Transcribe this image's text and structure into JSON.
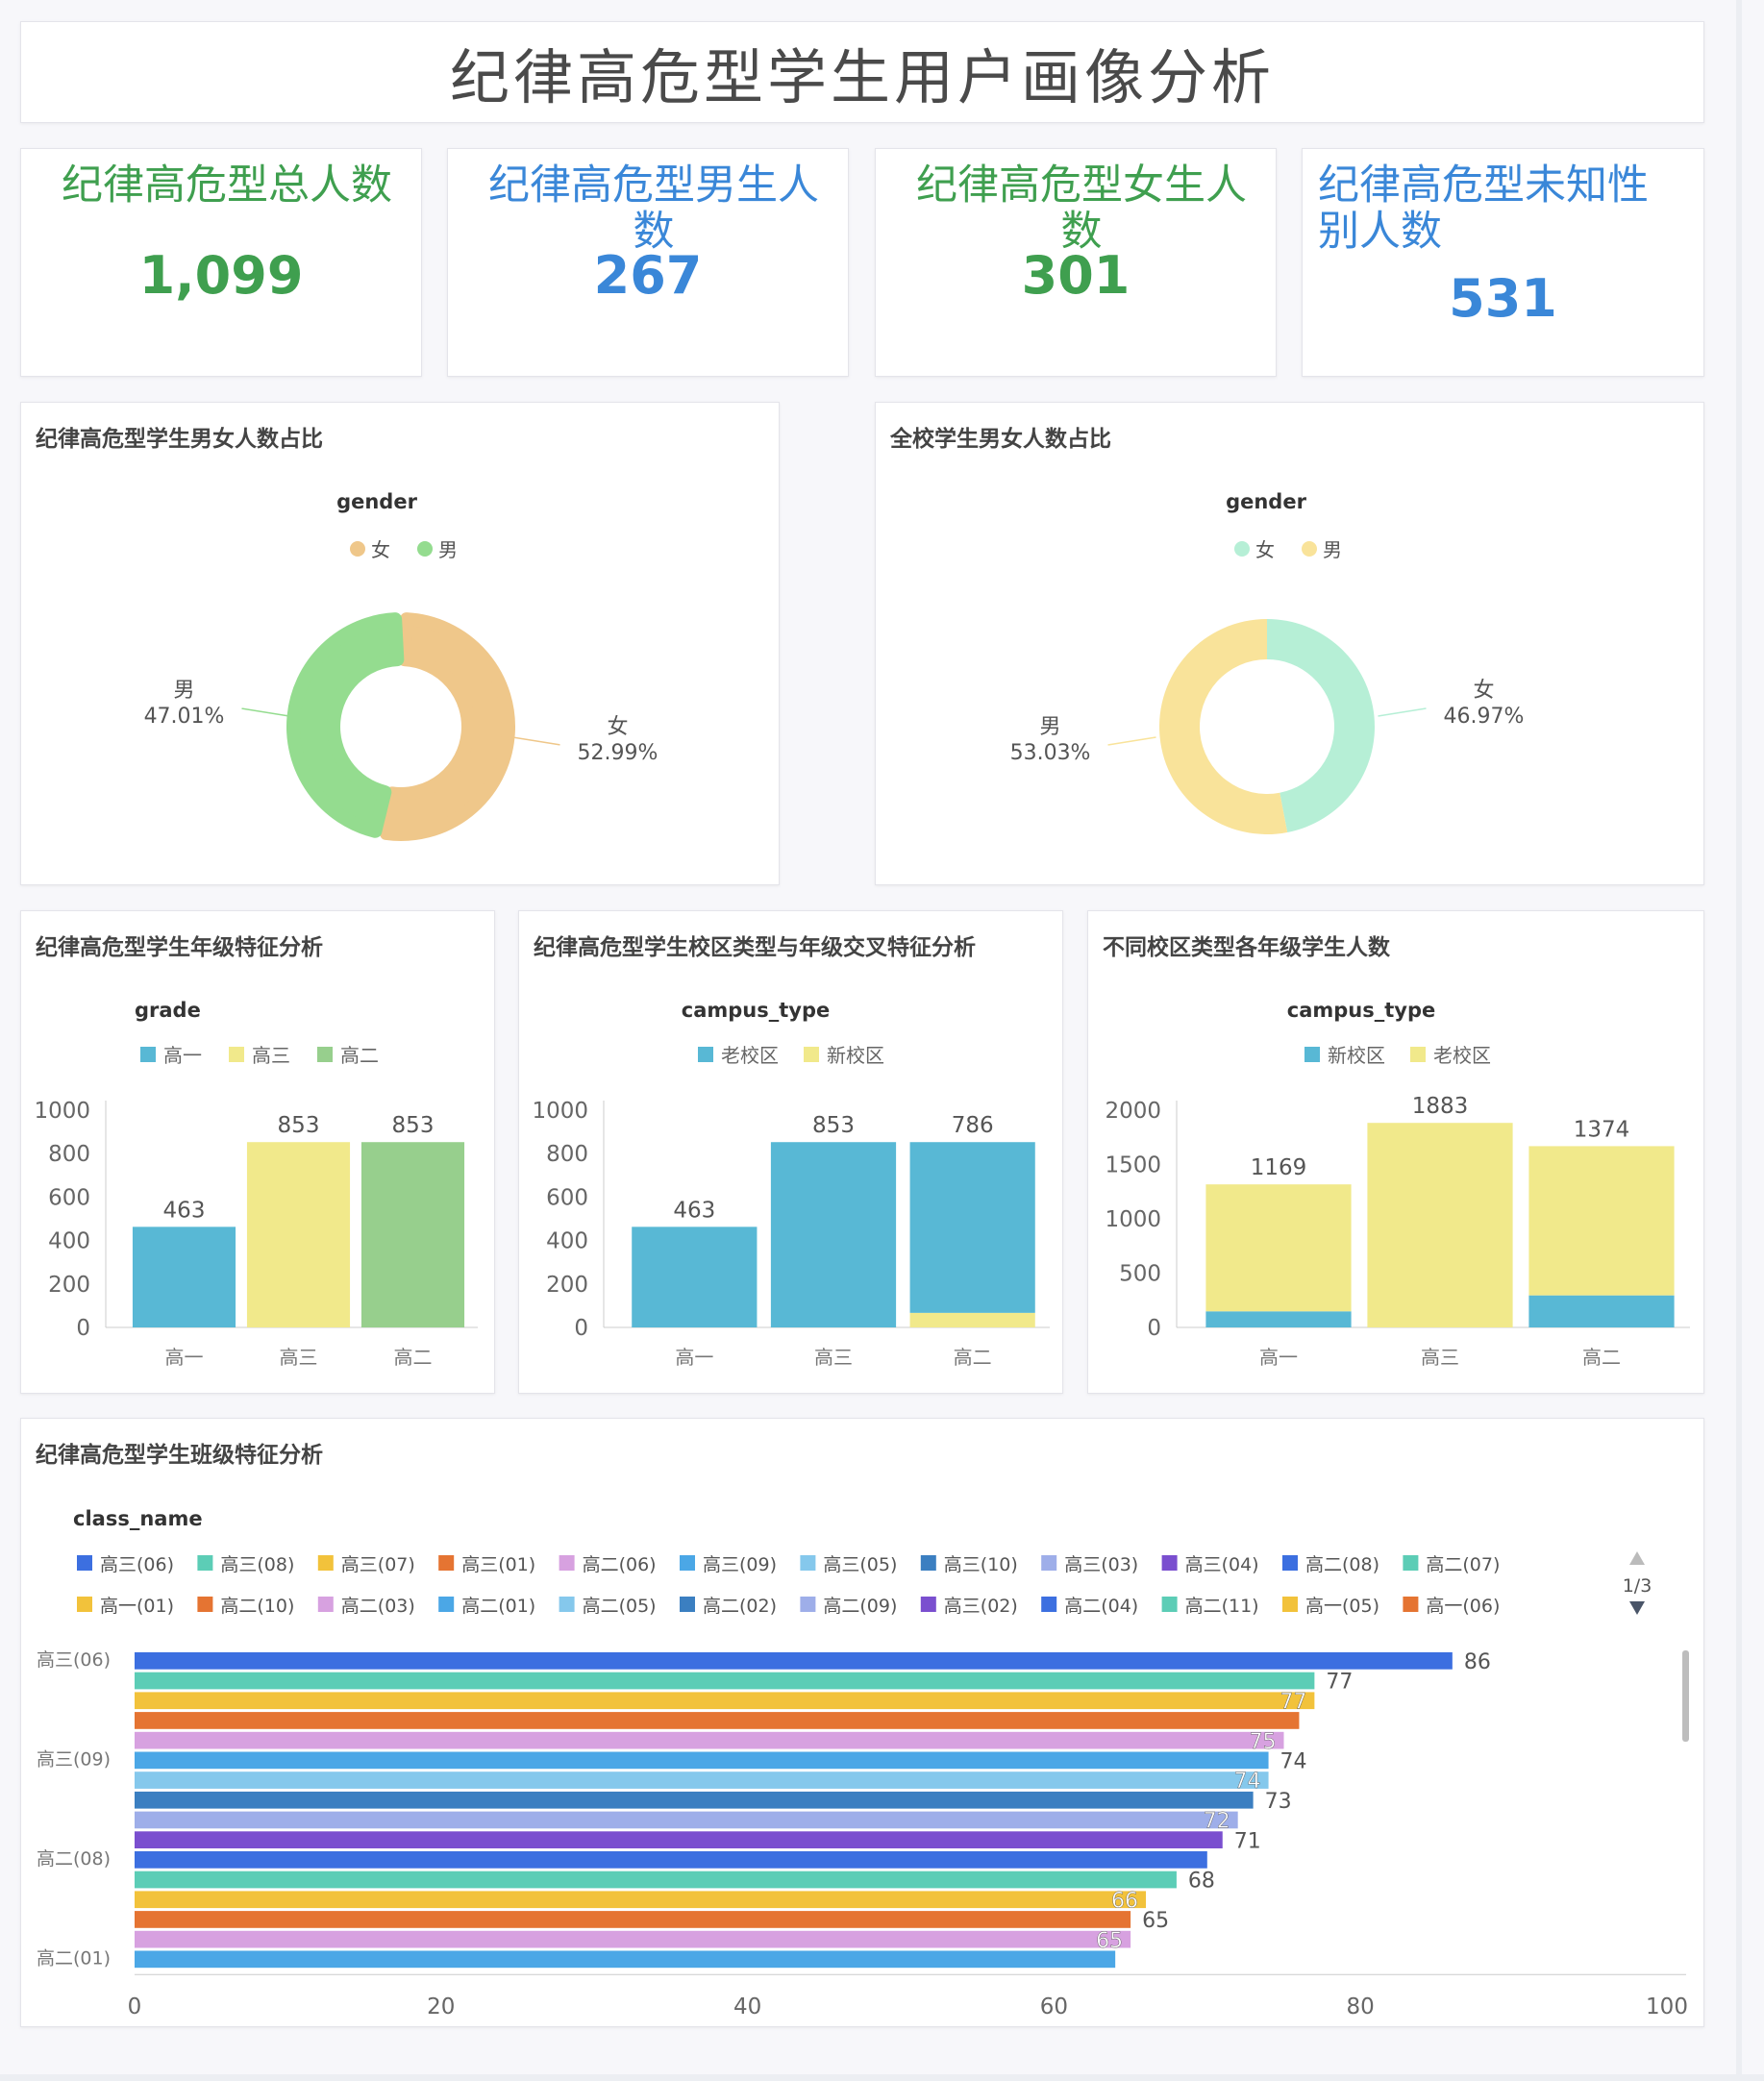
{
  "page_title": "纪律高危型学生用户画像分析",
  "colors": {
    "green_kpi": "#3f9f4f",
    "blue_kpi": "#3a87d8",
    "female_high_risk": "#efc78a",
    "male_high_risk": "#94dc8f",
    "female_school": "#b6efd6",
    "male_school": "#f9e39a",
    "bar_blue": "#58b8d5",
    "bar_yellow": "#f1e98b",
    "bar_green": "#97cf8d"
  },
  "kpis": [
    {
      "label": "纪律高危型总人数",
      "value": "1,099",
      "color": "#3f9f4f"
    },
    {
      "label": "纪律高危型男生人数",
      "value": "267",
      "color": "#3a87d8"
    },
    {
      "label": "纪律高危型女生人数",
      "value": "301",
      "color": "#3f9f4f"
    },
    {
      "label": "纪律高危型未知性别人数",
      "value": "531",
      "color": "#3a87d8"
    }
  ],
  "panels": {
    "gender_high_risk": {
      "title": "纪律高危型学生男女人数占比"
    },
    "gender_school": {
      "title": "全校学生男女人数占比"
    },
    "grade": {
      "title": "纪律高危型学生年级特征分析"
    },
    "campus_grade": {
      "title": "纪律高危型学生校区类型与年级交叉特征分析"
    },
    "campus_grade_all": {
      "title": "不同校区类型各年级学生人数"
    },
    "class": {
      "title": "纪律高危型学生班级特征分析"
    }
  },
  "chart_data": [
    {
      "type": "pie",
      "legend_title": "gender",
      "legend": [
        "女",
        "男"
      ],
      "slices": [
        {
          "name": "女",
          "percent": 52.99,
          "label": "52.99%",
          "color": "#efc78a"
        },
        {
          "name": "男",
          "percent": 47.01,
          "label": "47.01%",
          "color": "#94dc8f"
        }
      ]
    },
    {
      "type": "pie",
      "legend_title": "gender",
      "legend": [
        "女",
        "男"
      ],
      "slices": [
        {
          "name": "女",
          "percent": 46.97,
          "label": "46.97%",
          "color": "#b6efd6"
        },
        {
          "name": "男",
          "percent": 53.03,
          "label": "53.03%",
          "color": "#f9e39a"
        }
      ]
    },
    {
      "type": "bar",
      "legend_title": "grade",
      "legend": [
        {
          "name": "高一",
          "color": "#58b8d5"
        },
        {
          "name": "高三",
          "color": "#f1e98b"
        },
        {
          "name": "高二",
          "color": "#97cf8d"
        }
      ],
      "categories": [
        "高一",
        "高三",
        "高二"
      ],
      "values": [
        463,
        853,
        853
      ],
      "colors": [
        "#58b8d5",
        "#f1e98b",
        "#97cf8d"
      ],
      "yticks": [
        "0",
        "200",
        "400",
        "600",
        "800",
        "1000"
      ],
      "ylim": [
        0,
        1000
      ]
    },
    {
      "type": "bar",
      "stacked": true,
      "legend_title": "campus_type",
      "legend": [
        {
          "name": "老校区",
          "color": "#58b8d5"
        },
        {
          "name": "新校区",
          "color": "#f1e98b"
        }
      ],
      "categories": [
        "高一",
        "高三",
        "高二"
      ],
      "series": [
        {
          "name": "新校区",
          "values": [
            0,
            0,
            67
          ],
          "color": "#f1e98b",
          "labels": [
            "",
            "",
            "67"
          ]
        },
        {
          "name": "老校区",
          "values": [
            463,
            853,
            786
          ],
          "color": "#58b8d5",
          "labels": [
            "463",
            "853",
            "786"
          ]
        }
      ],
      "yticks": [
        "0",
        "200",
        "400",
        "600",
        "800",
        "1000"
      ],
      "ylim": [
        0,
        1000
      ]
    },
    {
      "type": "bar",
      "stacked": true,
      "legend_title": "campus_type",
      "legend": [
        {
          "name": "新校区",
          "color": "#58b8d5"
        },
        {
          "name": "老校区",
          "color": "#f1e98b"
        }
      ],
      "categories": [
        "高一",
        "高三",
        "高二"
      ],
      "series": [
        {
          "name": "新校区",
          "values": [
            148,
            0,
            295
          ],
          "color": "#58b8d5",
          "labels": [
            "148",
            "",
            "295"
          ]
        },
        {
          "name": "老校区",
          "values": [
            1169,
            1883,
            1374
          ],
          "color": "#f1e98b",
          "labels": [
            "1169",
            "1883",
            "1374"
          ]
        }
      ],
      "yticks": [
        "0",
        "500",
        "1000",
        "1500",
        "2000"
      ],
      "ylim": [
        0,
        2000
      ]
    },
    {
      "type": "bar",
      "orientation": "horizontal",
      "legend_title": "class_name",
      "legend_page": "1/3",
      "legend": [
        {
          "name": "高三(06)",
          "color": "#3c6fe0"
        },
        {
          "name": "高三(08)",
          "color": "#5ccdb6"
        },
        {
          "name": "高三(07)",
          "color": "#f2c23b"
        },
        {
          "name": "高三(01)",
          "color": "#e57432"
        },
        {
          "name": "高二(06)",
          "color": "#d7a1e0"
        },
        {
          "name": "高三(09)",
          "color": "#4ba7e6"
        },
        {
          "name": "高三(05)",
          "color": "#85c8ec"
        },
        {
          "name": "高三(10)",
          "color": "#3b7fc1"
        },
        {
          "name": "高三(03)",
          "color": "#9eaee9"
        },
        {
          "name": "高三(04)",
          "color": "#7a4fcf"
        },
        {
          "name": "高二(08)",
          "color": "#3c6fe0"
        },
        {
          "name": "高二(07)",
          "color": "#5ccdb6"
        },
        {
          "name": "高一(01)",
          "color": "#f2c23b"
        },
        {
          "name": "高二(10)",
          "color": "#e57432"
        },
        {
          "name": "高二(03)",
          "color": "#d7a1e0"
        },
        {
          "name": "高二(01)",
          "color": "#4ba7e6"
        },
        {
          "name": "高二(05)",
          "color": "#85c8ec"
        },
        {
          "name": "高二(02)",
          "color": "#3b7fc1"
        },
        {
          "name": "高二(09)",
          "color": "#9eaee9"
        },
        {
          "name": "高三(02)",
          "color": "#7a4fcf"
        },
        {
          "name": "高二(04)",
          "color": "#3c6fe0"
        },
        {
          "name": "高二(11)",
          "color": "#5ccdb6"
        },
        {
          "name": "高一(05)",
          "color": "#f2c23b"
        },
        {
          "name": "高一(06)",
          "color": "#e57432"
        }
      ],
      "categories": [
        "高三(06)",
        "高三(08)",
        "高三(07)",
        "高三(01)",
        "高二(06)",
        "高三(09)",
        "高三(05)",
        "高三(10)",
        "高三(03)",
        "高三(04)",
        "高二(08)",
        "高二(07)",
        "高一(01)",
        "高二(10)",
        "高二(03)",
        "高二(01)"
      ],
      "values": [
        86,
        77,
        77,
        76,
        75,
        74,
        74,
        73,
        72,
        71,
        70,
        68,
        66,
        65,
        65,
        64
      ],
      "labels": [
        "86",
        "77",
        "77",
        "",
        "75",
        "74",
        "74",
        "73",
        "72",
        "71",
        "",
        "68",
        "66",
        "65",
        "65",
        ""
      ],
      "colors": [
        "#3c6fe0",
        "#5ccdb6",
        "#f2c23b",
        "#e57432",
        "#d7a1e0",
        "#4ba7e6",
        "#85c8ec",
        "#3b7fc1",
        "#9eaee9",
        "#7a4fcf",
        "#3c6fe0",
        "#5ccdb6",
        "#f2c23b",
        "#e57432",
        "#d7a1e0",
        "#4ba7e6"
      ],
      "y_tick_labels": [
        "高三(06)",
        "高三(09)",
        "高二(08)",
        "高二(01)"
      ],
      "xticks": [
        "0",
        "20",
        "40",
        "60",
        "80",
        "100"
      ],
      "xlim": [
        0,
        100
      ]
    }
  ]
}
